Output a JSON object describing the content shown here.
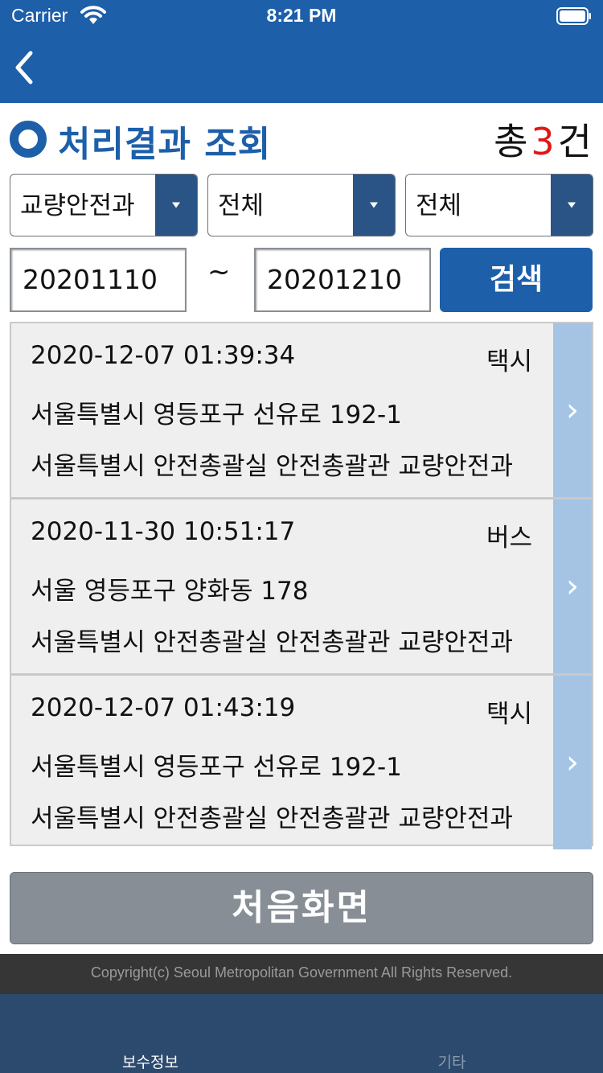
{
  "status_bar": {
    "carrier": "Carrier",
    "time": "8:21 PM"
  },
  "nav": {
    "back_icon": "chevron-left-icon"
  },
  "header": {
    "title": "처리결과 조회",
    "total_prefix": "총",
    "total_count": "3",
    "total_suffix": "건"
  },
  "filters": {
    "department": "교량안전과",
    "category_1": "전체",
    "category_2": "전체",
    "date_from": "20201110",
    "date_separator": "~",
    "date_to": "20201210",
    "search_label": "검색"
  },
  "results": [
    {
      "datetime": "2020-12-07 01:39:34",
      "type": "택시",
      "address": "서울특별시 영등포구 선유로 192-1",
      "department": "서울특별시 안전총괄실 안전총괄관 교량안전과"
    },
    {
      "datetime": "2020-11-30 10:51:17",
      "type": "버스",
      "address": "서울 영등포구 양화동 178",
      "department": "서울특별시 안전총괄실 안전총괄관 교량안전과"
    },
    {
      "datetime": "2020-12-07 01:43:19",
      "type": "택시",
      "address": "서울특별시 영등포구 선유로 192-1",
      "department": "서울특별시 안전총괄실 안전총괄관 교량안전과"
    }
  ],
  "home_button_label": "처음화면",
  "footer": {
    "copyright": "Copyright(c) Seoul Metropolitan Government All Rights Reserved."
  },
  "tabs": [
    {
      "label": "보수정보",
      "active": true
    },
    {
      "label": "기타",
      "active": false
    }
  ],
  "colors": {
    "primary": "#1d5fa9",
    "select_arrow": "#2a5485",
    "row_chevron": "#a5c4e4",
    "count_highlight": "#e01616",
    "home_button": "#878e95",
    "tabbar": "#2b4a6e"
  }
}
